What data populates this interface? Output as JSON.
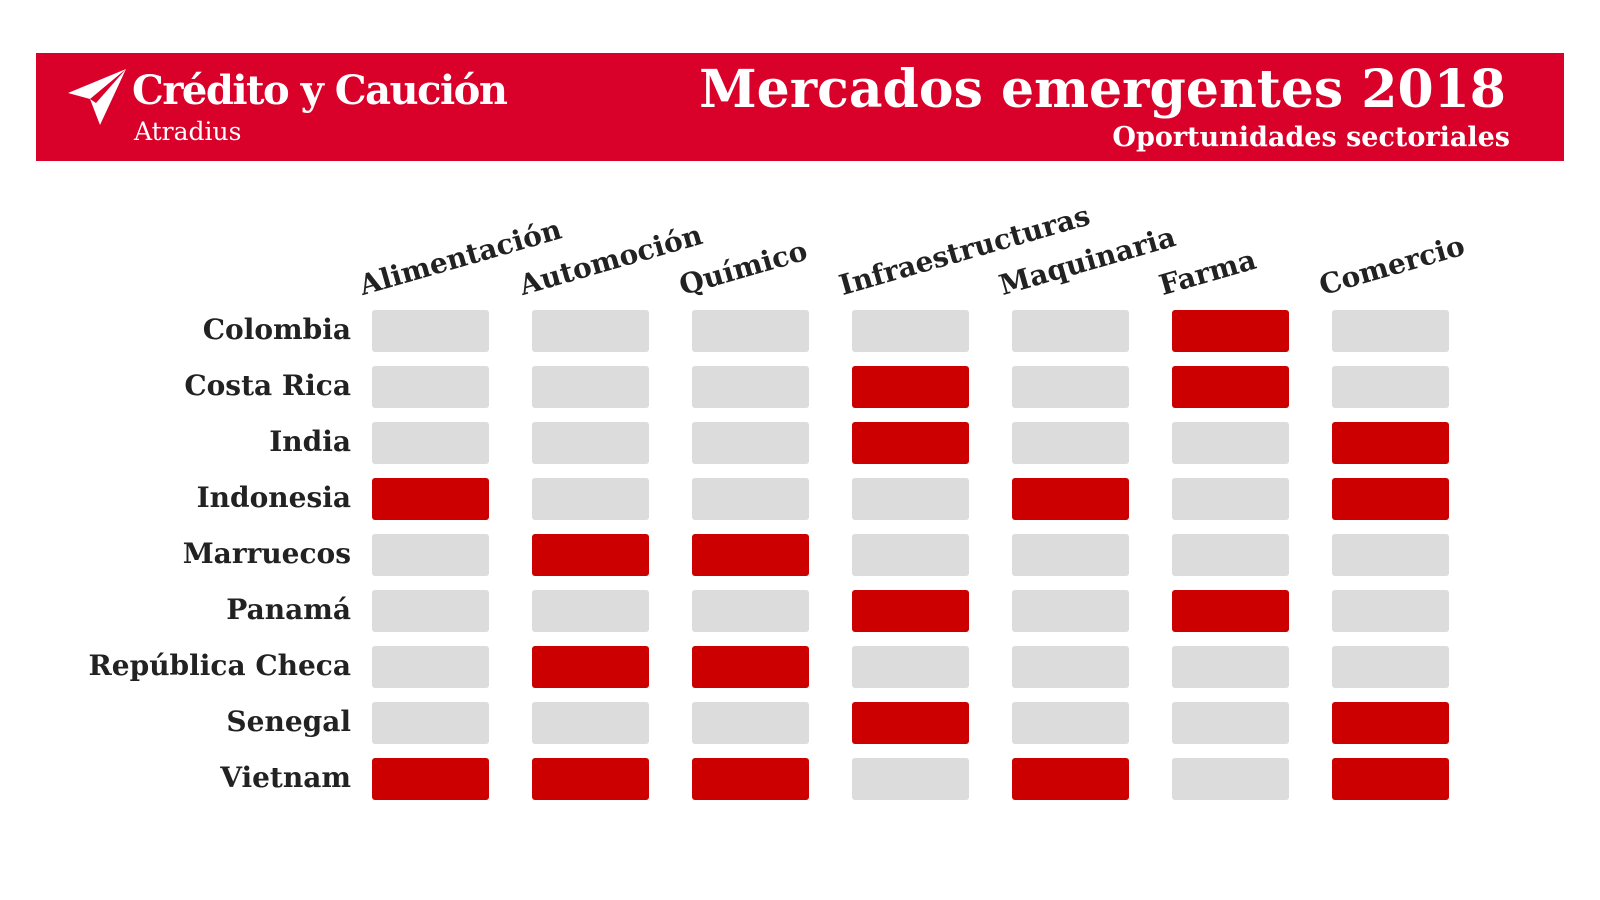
{
  "header": {
    "brand_name": "Crédito y Caución",
    "brand_sub": "Atradius",
    "logo_icon": "plane-logo-icon",
    "title": "Mercados emergentes 2018",
    "subtitle": "Oportunidades sectoriales"
  },
  "colors": {
    "brand_red": "#d9002a",
    "highlight": "#cc0000",
    "empty": "#dcdcdc"
  },
  "chart_data": {
    "type": "table",
    "title": "Mercados emergentes 2018",
    "subtitle": "Oportunidades sectoriales",
    "columns": [
      "Alimentación",
      "Automoción",
      "Químico",
      "Infraestructuras",
      "Maquinaria",
      "Farma",
      "Comercio"
    ],
    "rows": [
      "Colombia",
      "Costa Rica",
      "India",
      "Indonesia",
      "Marruecos",
      "Panamá",
      "República Checa",
      "Senegal",
      "Vietnam"
    ],
    "values": [
      [
        0,
        0,
        0,
        0,
        0,
        1,
        0
      ],
      [
        0,
        0,
        0,
        1,
        0,
        1,
        0
      ],
      [
        0,
        0,
        0,
        1,
        0,
        0,
        1
      ],
      [
        1,
        0,
        0,
        0,
        1,
        0,
        1
      ],
      [
        0,
        1,
        1,
        0,
        0,
        0,
        0
      ],
      [
        0,
        0,
        0,
        1,
        0,
        1,
        0
      ],
      [
        0,
        1,
        1,
        0,
        0,
        0,
        0
      ],
      [
        0,
        0,
        0,
        1,
        0,
        0,
        1
      ],
      [
        1,
        1,
        1,
        0,
        1,
        0,
        1
      ]
    ]
  }
}
